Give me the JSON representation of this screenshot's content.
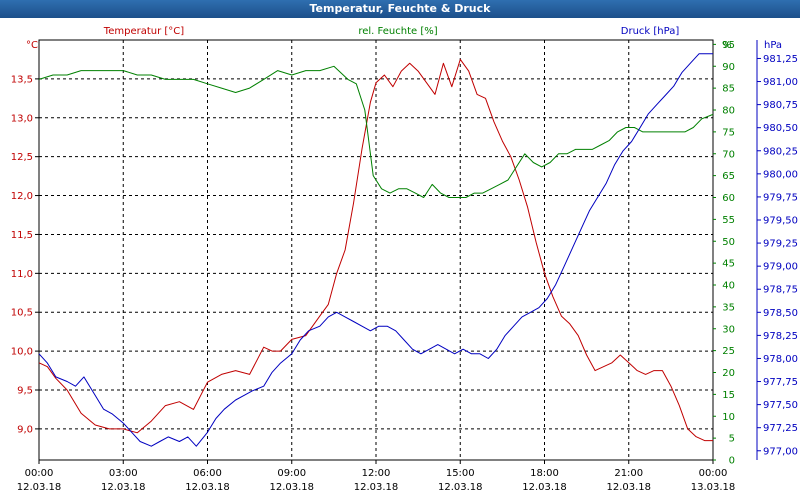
{
  "window": {
    "title": "Temperatur, Feuchte & Druck"
  },
  "chart_data": {
    "type": "line",
    "title": "Temperatur, Feuchte & Druck",
    "x_ticks": [
      {
        "time": "00:00",
        "date": "12.03.18"
      },
      {
        "time": "03:00",
        "date": "12.03.18"
      },
      {
        "time": "06:00",
        "date": "12.03.18"
      },
      {
        "time": "09:00",
        "date": "12.03.18"
      },
      {
        "time": "12:00",
        "date": "12.03.18"
      },
      {
        "time": "15:00",
        "date": "12.03.18"
      },
      {
        "time": "18:00",
        "date": "12.03.18"
      },
      {
        "time": "21:00",
        "date": "12.03.18"
      },
      {
        "time": "00:00",
        "date": "13.03.18"
      }
    ],
    "x_range_hours": [
      0,
      24
    ],
    "grid": true,
    "axes": {
      "temperature": {
        "label": "Temperatur [°C]",
        "unit": "°C",
        "range": [
          8.6,
          14.0
        ],
        "ticks": [
          "9,0",
          "9,5",
          "10,0",
          "10,5",
          "11,0",
          "11,5",
          "12,0",
          "12,5",
          "13,0",
          "13,5"
        ],
        "tick_values": [
          9.0,
          9.5,
          10.0,
          10.5,
          11.0,
          11.5,
          12.0,
          12.5,
          13.0,
          13.5
        ],
        "color": "#c00000"
      },
      "humidity": {
        "label": "rel. Feuchte [%]",
        "unit": "%",
        "range": [
          0,
          96
        ],
        "ticks": [
          "0",
          "5",
          "10",
          "15",
          "20",
          "25",
          "30",
          "35",
          "40",
          "45",
          "50",
          "55",
          "60",
          "65",
          "70",
          "75",
          "80",
          "85",
          "90",
          "95"
        ],
        "tick_values": [
          0,
          5,
          10,
          15,
          20,
          25,
          30,
          35,
          40,
          45,
          50,
          55,
          60,
          65,
          70,
          75,
          80,
          85,
          90,
          95
        ],
        "color": "#008000"
      },
      "pressure": {
        "label": "Druck [hPa]",
        "unit": "hPa",
        "range": [
          976.9,
          981.45
        ],
        "ticks": [
          "977,00",
          "977,25",
          "977,50",
          "977,75",
          "978,00",
          "978,25",
          "978,50",
          "978,75",
          "979,00",
          "979,25",
          "979,50",
          "979,75",
          "980,00",
          "980,25",
          "980,50",
          "980,75",
          "981,00",
          "981,25"
        ],
        "tick_values": [
          977.0,
          977.25,
          977.5,
          977.75,
          978.0,
          978.25,
          978.5,
          978.75,
          979.0,
          979.25,
          979.5,
          979.75,
          980.0,
          980.25,
          980.5,
          980.75,
          981.0,
          981.25
        ],
        "color": "#0000c0"
      }
    },
    "series": [
      {
        "name": "Temperatur [°C]",
        "axis": "temperature",
        "color": "#c00000",
        "x": [
          0,
          0.3,
          0.6,
          1.0,
          1.5,
          2.0,
          2.5,
          3.0,
          3.5,
          4.0,
          4.5,
          5.0,
          5.5,
          6.0,
          6.5,
          7.0,
          7.5,
          8.0,
          8.3,
          8.6,
          9.0,
          9.5,
          10.0,
          10.3,
          10.6,
          10.9,
          11.2,
          11.5,
          11.8,
          12.0,
          12.3,
          12.6,
          12.9,
          13.2,
          13.5,
          13.8,
          14.1,
          14.4,
          14.7,
          15.0,
          15.3,
          15.6,
          15.9,
          16.2,
          16.5,
          16.8,
          17.1,
          17.4,
          17.7,
          18.0,
          18.3,
          18.6,
          18.9,
          19.2,
          19.5,
          19.8,
          20.1,
          20.4,
          20.7,
          21.0,
          21.3,
          21.6,
          21.9,
          22.2,
          22.5,
          22.8,
          23.1,
          23.4,
          23.7,
          24.0
        ],
        "values": [
          9.85,
          9.8,
          9.65,
          9.5,
          9.2,
          9.05,
          9.0,
          9.0,
          8.95,
          9.1,
          9.3,
          9.35,
          9.25,
          9.6,
          9.7,
          9.75,
          9.7,
          10.05,
          10.0,
          10.0,
          10.15,
          10.2,
          10.45,
          10.6,
          11.0,
          11.3,
          11.9,
          12.6,
          13.2,
          13.45,
          13.55,
          13.4,
          13.6,
          13.7,
          13.6,
          13.45,
          13.3,
          13.7,
          13.4,
          13.75,
          13.6,
          13.3,
          13.25,
          12.95,
          12.7,
          12.5,
          12.2,
          11.85,
          11.4,
          11.0,
          10.7,
          10.45,
          10.35,
          10.2,
          9.95,
          9.75,
          9.8,
          9.85,
          9.95,
          9.85,
          9.75,
          9.7,
          9.75,
          9.75,
          9.55,
          9.3,
          9.0,
          8.9,
          8.85,
          8.85
        ]
      },
      {
        "name": "rel. Feuchte [%]",
        "axis": "humidity",
        "color": "#008000",
        "x": [
          0,
          0.5,
          1.0,
          1.5,
          2.0,
          2.5,
          3.0,
          3.5,
          4.0,
          4.5,
          5.0,
          5.5,
          6.0,
          6.5,
          7.0,
          7.5,
          8.0,
          8.5,
          9.0,
          9.5,
          10.0,
          10.5,
          11.0,
          11.3,
          11.6,
          11.9,
          12.2,
          12.5,
          12.8,
          13.1,
          13.4,
          13.7,
          14.0,
          14.3,
          14.6,
          14.9,
          15.2,
          15.5,
          15.8,
          16.1,
          16.4,
          16.7,
          17.0,
          17.3,
          17.6,
          17.9,
          18.2,
          18.5,
          18.8,
          19.1,
          19.4,
          19.7,
          20.0,
          20.3,
          20.6,
          20.9,
          21.2,
          21.5,
          21.8,
          22.1,
          22.4,
          22.7,
          23.0,
          23.3,
          23.6,
          24.0
        ],
        "values": [
          87,
          88,
          88,
          89,
          89,
          89,
          89,
          88,
          88,
          87,
          87,
          87,
          86,
          85,
          84,
          85,
          87,
          89,
          88,
          89,
          89,
          90,
          87,
          86,
          80,
          65,
          62,
          61,
          62,
          62,
          61,
          60,
          63,
          61,
          60,
          60,
          60,
          61,
          61,
          62,
          63,
          64,
          67,
          70,
          68,
          67,
          68,
          70,
          70,
          71,
          71,
          71,
          72,
          73,
          75,
          76,
          76,
          75,
          75,
          75,
          75,
          75,
          75,
          76,
          78,
          79
        ]
      },
      {
        "name": "Druck [hPa]",
        "axis": "pressure",
        "color": "#0000c0",
        "x": [
          0,
          0.3,
          0.6,
          1.0,
          1.3,
          1.6,
          2.0,
          2.3,
          2.6,
          3.0,
          3.3,
          3.6,
          4.0,
          4.3,
          4.6,
          5.0,
          5.3,
          5.6,
          6.0,
          6.3,
          6.6,
          7.0,
          7.3,
          7.6,
          8.0,
          8.3,
          8.6,
          9.0,
          9.3,
          9.6,
          10.0,
          10.3,
          10.6,
          10.9,
          11.2,
          11.5,
          11.8,
          12.1,
          12.4,
          12.7,
          13.0,
          13.3,
          13.6,
          13.9,
          14.2,
          14.5,
          14.8,
          15.1,
          15.4,
          15.7,
          16.0,
          16.3,
          16.6,
          16.9,
          17.2,
          17.5,
          17.8,
          18.1,
          18.4,
          18.7,
          19.0,
          19.3,
          19.6,
          19.9,
          20.2,
          20.5,
          20.8,
          21.1,
          21.4,
          21.7,
          22.0,
          22.3,
          22.6,
          22.9,
          23.2,
          23.5,
          23.8,
          24.0
        ],
        "values": [
          978.05,
          977.95,
          977.8,
          977.75,
          977.7,
          977.8,
          977.6,
          977.45,
          977.4,
          977.3,
          977.2,
          977.1,
          977.05,
          977.1,
          977.15,
          977.1,
          977.15,
          977.05,
          977.2,
          977.35,
          977.45,
          977.55,
          977.6,
          977.65,
          977.7,
          977.85,
          977.95,
          978.05,
          978.2,
          978.3,
          978.35,
          978.45,
          978.5,
          978.45,
          978.4,
          978.35,
          978.3,
          978.35,
          978.35,
          978.3,
          978.2,
          978.1,
          978.05,
          978.1,
          978.15,
          978.1,
          978.05,
          978.1,
          978.05,
          978.05,
          978.0,
          978.1,
          978.25,
          978.35,
          978.45,
          978.5,
          978.55,
          978.65,
          978.8,
          979.0,
          979.2,
          979.4,
          979.6,
          979.75,
          979.9,
          980.1,
          980.25,
          980.35,
          980.5,
          980.65,
          980.75,
          980.85,
          980.95,
          981.1,
          981.2,
          981.3,
          981.3,
          981.3
        ]
      }
    ]
  }
}
